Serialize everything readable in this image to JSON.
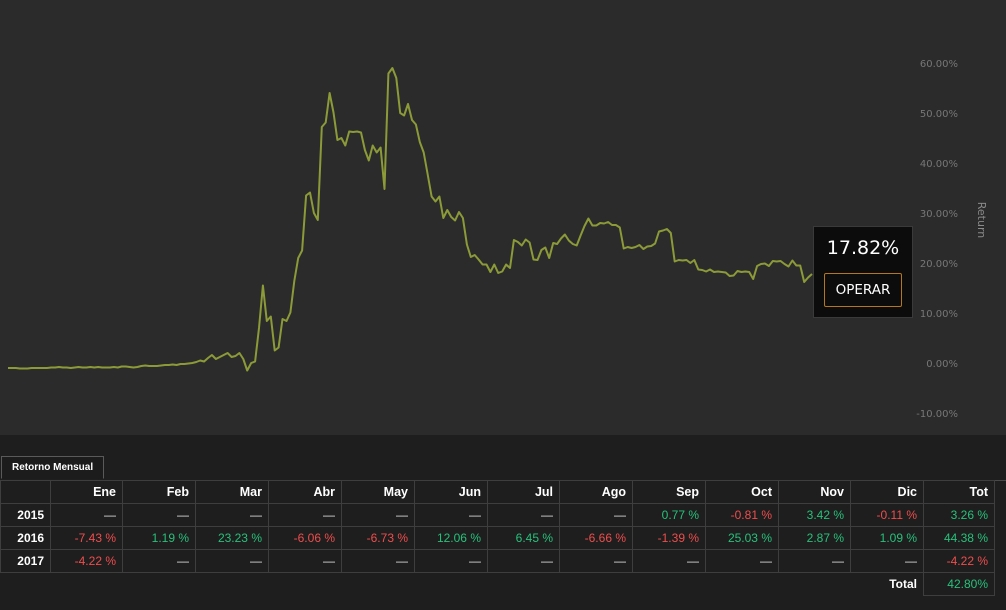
{
  "chart": {
    "tooltip_value": "17.82%",
    "operar_label": "OPERAR",
    "y_axis_title": "Return",
    "y_ticks": [
      "60.00%",
      "50.00%",
      "40.00%",
      "30.00%",
      "20.00%",
      "10.00%",
      "0.00%",
      "-10.00%"
    ]
  },
  "chart_data": {
    "type": "line",
    "title": "",
    "xlabel": "",
    "ylabel": "Return",
    "ylim": [
      -10,
      60
    ],
    "y_unit": "%",
    "grid": false,
    "series": [
      {
        "color": "#8c9a38",
        "values": [
          -1,
          -1,
          -1,
          -1.1,
          -1.1,
          -1.1,
          -1,
          -1,
          -1,
          -1,
          -1,
          -0.9,
          -0.9,
          -0.8,
          -0.9,
          -0.9,
          -1,
          -0.9,
          -0.8,
          -0.9,
          -0.9,
          -0.8,
          -0.9,
          -0.8,
          -0.9,
          -0.9,
          -0.9,
          -0.8,
          -0.9,
          -0.7,
          -0.7,
          -0.8,
          -0.9,
          -0.8,
          -0.6,
          -0.5,
          -0.6,
          -0.6,
          -0.6,
          -0.5,
          -0.4,
          -0.4,
          -0.3,
          -0.4,
          -0.2,
          -0.2,
          -0.1,
          0,
          0.2,
          0.5,
          0.3,
          1,
          1.6,
          0.8,
          1.2,
          1.6,
          2,
          1.2,
          1.4,
          2,
          0.8,
          -1.5,
          0,
          0.3,
          7,
          15.5,
          8.4,
          9.3,
          2.5,
          3.1,
          8.8,
          8.4,
          10.1,
          16.4,
          21,
          22.5,
          33.5,
          34.1,
          30,
          28.6,
          47.2,
          48.1,
          54,
          50.1,
          44.6,
          45,
          43.5,
          46.3,
          46.2,
          46.3,
          46.1,
          42.6,
          40.5,
          43.5,
          42.1,
          43.1,
          34.8,
          57.9,
          59,
          57,
          50,
          49.5,
          51.8,
          48.6,
          47.7,
          44.2,
          42.1,
          37.8,
          33.3,
          32.3,
          33.3,
          29,
          30.6,
          29.2,
          28.5,
          30.2,
          29,
          23.7,
          21.2,
          21.6,
          20.7,
          19.7,
          19.7,
          18.2,
          19.7,
          18,
          18.3,
          19.7,
          19,
          24.6,
          24.2,
          23.5,
          24.7,
          24.1,
          20.7,
          20.6,
          22.6,
          23.1,
          21,
          24,
          23.8,
          24.9,
          25.7,
          24.5,
          23.8,
          23.5,
          25.5,
          27.4,
          28.9,
          27.5,
          27.5,
          28,
          27.9,
          28.2,
          27.6,
          27.6,
          27.1,
          22.9,
          23.2,
          23,
          23.2,
          23.6,
          22.8,
          23.3,
          23.4,
          23.9,
          26.3,
          26.5,
          26.8,
          26,
          20.3,
          20.6,
          20.5,
          20.6,
          20,
          20.6,
          18.7,
          18.6,
          18.3,
          18.7,
          18.2,
          18.3,
          18.2,
          18.1,
          17.4,
          17.5,
          18.4,
          18.2,
          18.3,
          18.2,
          16.8,
          19.4,
          19.8,
          19.9,
          19.4,
          20.4,
          20.3,
          20.4,
          19.8,
          19.3,
          20.5,
          19.5,
          19.5,
          16.2,
          17.1,
          17.8
        ]
      }
    ]
  },
  "tabs": {
    "retorno": "Retorno Mensual"
  },
  "table": {
    "headers": [
      "",
      "Ene",
      "Feb",
      "Mar",
      "Abr",
      "May",
      "Jun",
      "Jul",
      "Ago",
      "Sep",
      "Oct",
      "Nov",
      "Dic",
      "Tot"
    ],
    "rows": [
      {
        "year": "2015",
        "cells": [
          "—",
          "—",
          "—",
          "—",
          "—",
          "—",
          "—",
          "—",
          "0.77 %",
          "-0.81 %",
          "3.42 %",
          "-0.11 %",
          "3.26 %"
        ]
      },
      {
        "year": "2016",
        "cells": [
          "-7.43 %",
          "1.19 %",
          "23.23 %",
          "-6.06 %",
          "-6.73 %",
          "12.06 %",
          "6.45 %",
          "-6.66 %",
          "-1.39 %",
          "25.03 %",
          "2.87 %",
          "1.09 %",
          "44.38 %"
        ]
      },
      {
        "year": "2017",
        "cells": [
          "-4.22 %",
          "—",
          "—",
          "—",
          "—",
          "—",
          "—",
          "—",
          "—",
          "—",
          "—",
          "—",
          "-4.22 %"
        ]
      }
    ],
    "total_label": "Total",
    "total_value": "42.80%"
  },
  "colors": {
    "positive": "#27c17b",
    "negative": "#ef4d4d",
    "line": "#8c9a38",
    "accent": "#b5761f"
  }
}
